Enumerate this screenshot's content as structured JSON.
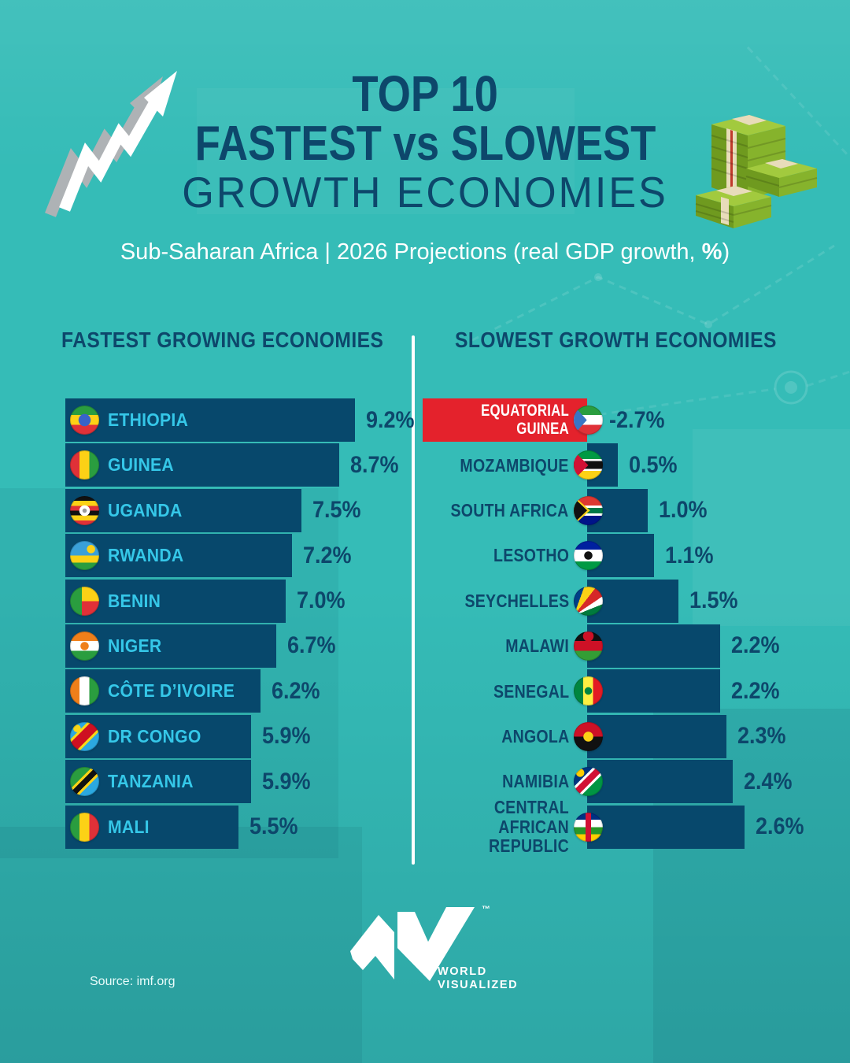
{
  "colors": {
    "background": "#35bcb7",
    "bar_navy": "#07486c",
    "title_navy": "#0d476b",
    "label_cyan": "#35c7e8",
    "highlight_red": "#e4222c",
    "white": "#ffffff"
  },
  "header": {
    "title_line1": "TOP 10",
    "title_line2": "FASTEST vs SLOWEST",
    "title_line3": "GROWTH ECONOMIES",
    "subtitle_prefix": "Sub-Saharan Africa | 2026 Projections (real GDP growth, ",
    "subtitle_bold": "%",
    "subtitle_suffix": ")"
  },
  "icons": {
    "left": "growth-arrow-icon",
    "right": "money-stacks-icon"
  },
  "columns": {
    "fastest": {
      "title": "FASTEST GROWING ECONOMIES",
      "rows": [
        {
          "country": "ETHIOPIA",
          "flag": "ethiopia",
          "value": 9.2,
          "label": "9.2%"
        },
        {
          "country": "GUINEA",
          "flag": "guinea",
          "value": 8.7,
          "label": "8.7%"
        },
        {
          "country": "UGANDA",
          "flag": "uganda",
          "value": 7.5,
          "label": "7.5%"
        },
        {
          "country": "RWANDA",
          "flag": "rwanda",
          "value": 7.2,
          "label": "7.2%"
        },
        {
          "country": "BENIN",
          "flag": "benin",
          "value": 7.0,
          "label": "7.0%"
        },
        {
          "country": "NIGER",
          "flag": "niger",
          "value": 6.7,
          "label": "6.7%"
        },
        {
          "country": "CÔTE D’IVOIRE",
          "flag": "civ",
          "value": 6.2,
          "label": "6.2%"
        },
        {
          "country": "DR CONGO",
          "flag": "drcongo",
          "value": 5.9,
          "label": "5.9%"
        },
        {
          "country": "TANZANIA",
          "flag": "tanzania",
          "value": 5.9,
          "label": "5.9%"
        },
        {
          "country": "MALI",
          "flag": "mali",
          "value": 5.5,
          "label": "5.5%"
        }
      ]
    },
    "slowest": {
      "title": "SLOWEST GROWTH ECONOMIES",
      "rows": [
        {
          "country": "EQUATORIAL GUINEA",
          "flag": "eqguinea",
          "value": -2.7,
          "label": "-2.7%",
          "highlight": true
        },
        {
          "country": "MOZAMBIQUE",
          "flag": "mozambique",
          "value": 0.5,
          "label": "0.5%"
        },
        {
          "country": "SOUTH AFRICA",
          "flag": "southafrica",
          "value": 1.0,
          "label": "1.0%"
        },
        {
          "country": "LESOTHO",
          "flag": "lesotho",
          "value": 1.1,
          "label": "1.1%"
        },
        {
          "country": "SEYCHELLES",
          "flag": "seychelles",
          "value": 1.5,
          "label": "1.5%"
        },
        {
          "country": "MALAWI",
          "flag": "malawi",
          "value": 2.2,
          "label": "2.2%"
        },
        {
          "country": "SENEGAL",
          "flag": "senegal",
          "value": 2.2,
          "label": "2.2%"
        },
        {
          "country": "ANGOLA",
          "flag": "angola",
          "value": 2.3,
          "label": "2.3%"
        },
        {
          "country": "NAMIBIA",
          "flag": "namibia",
          "value": 2.4,
          "label": "2.4%"
        },
        {
          "country": "CENTRAL AFRICAN\nREPUBLIC",
          "flag": "car",
          "value": 2.6,
          "label": "2.6%"
        }
      ]
    }
  },
  "footer": {
    "brand_line1": "WORLD",
    "brand_line2": "VISUALIZED",
    "trademark": "™",
    "source": "Source: imf.org"
  },
  "chart_data": {
    "type": "bar",
    "orientation": "horizontal",
    "title": "TOP 10 FASTEST vs SLOWEST GROWTH ECONOMIES",
    "subtitle": "Sub-Saharan Africa | 2026 Projections (real GDP growth, %)",
    "source": "imf.org",
    "legend_position": "none",
    "grid": false,
    "series": [
      {
        "name": "FASTEST GROWING ECONOMIES",
        "categories": [
          "ETHIOPIA",
          "GUINEA",
          "UGANDA",
          "RWANDA",
          "BENIN",
          "NIGER",
          "CÔTE D’IVOIRE",
          "DR CONGO",
          "TANZANIA",
          "MALI"
        ],
        "values": [
          9.2,
          8.7,
          7.5,
          7.2,
          7.0,
          6.7,
          6.2,
          5.9,
          5.9,
          5.5
        ]
      },
      {
        "name": "SLOWEST GROWTH ECONOMIES",
        "categories": [
          "EQUATORIAL GUINEA",
          "MOZAMBIQUE",
          "SOUTH AFRICA",
          "LESOTHO",
          "SEYCHELLES",
          "MALAWI",
          "SENEGAL",
          "ANGOLA",
          "NAMIBIA",
          "CENTRAL AFRICAN REPUBLIC"
        ],
        "values": [
          -2.7,
          0.5,
          1.0,
          1.1,
          1.5,
          2.2,
          2.2,
          2.3,
          2.4,
          2.6
        ],
        "highlighted_category": "EQUATORIAL GUINEA",
        "highlight_color": "#e4222c"
      }
    ]
  }
}
